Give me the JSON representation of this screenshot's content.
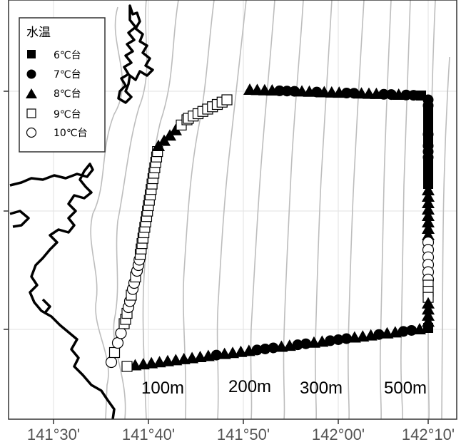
{
  "legend": {
    "title": "水温",
    "items": [
      {
        "label": "6℃台",
        "symbol": "filled-square"
      },
      {
        "label": "7℃台",
        "symbol": "filled-circle"
      },
      {
        "label": "8℃台",
        "symbol": "filled-triangle"
      },
      {
        "label": "9℃台",
        "symbol": "open-square"
      },
      {
        "label": "10℃台",
        "symbol": "open-circle"
      }
    ]
  },
  "depth_labels": [
    "100m",
    "200m",
    "300m",
    "500m"
  ],
  "x_axis": {
    "tick_labels": [
      "141°30'",
      "141°40'",
      "141°50'",
      "142°00'",
      "142°10'"
    ]
  },
  "colors": {
    "coast": "#000000",
    "contour": "#bdbdbd",
    "grid": "#e6e6e6",
    "frame": "#333333"
  }
}
